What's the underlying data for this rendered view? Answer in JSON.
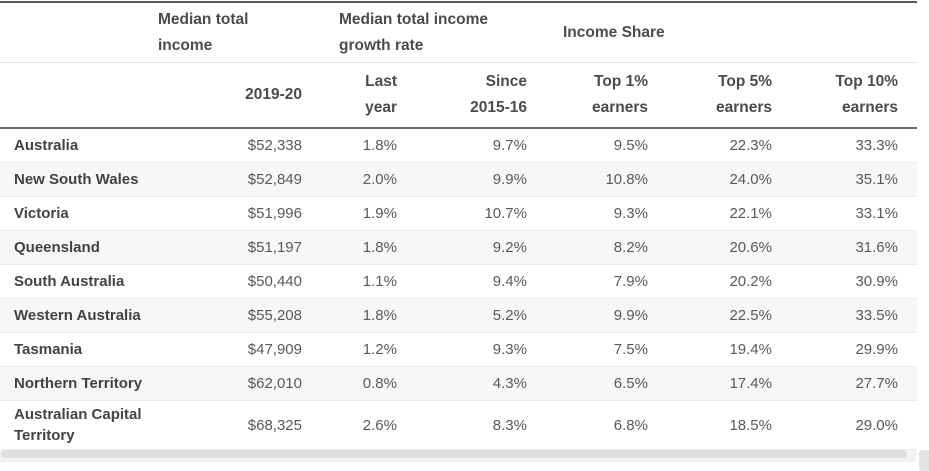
{
  "colors": {
    "header_border_dark": "#69696b",
    "row_separator": "#ebebeb",
    "row_stripe": "#f7f7f7",
    "text_header": "#4b4b4d",
    "text_value": "#58595b"
  },
  "chart_data": {
    "type": "table",
    "column_groups": [
      {
        "label": "Median total\nincome"
      },
      {
        "label": "Median total income\ngrowth rate"
      },
      {
        "label": "Income Share"
      }
    ],
    "columns": [
      "2019-20",
      "Last\nyear",
      "Since\n2015-16",
      "Top 1%\nearners",
      "Top 5%\nearners",
      "Top 10%\nearners"
    ],
    "rows": [
      {
        "region": "Australia",
        "values": [
          "$52,338",
          "1.8%",
          "9.7%",
          "9.5%",
          "22.3%",
          "33.3%"
        ]
      },
      {
        "region": "New South Wales",
        "values": [
          "$52,849",
          "2.0%",
          "9.9%",
          "10.8%",
          "24.0%",
          "35.1%"
        ]
      },
      {
        "region": "Victoria",
        "values": [
          "$51,996",
          "1.9%",
          "10.7%",
          "9.3%",
          "22.1%",
          "33.1%"
        ]
      },
      {
        "region": "Queensland",
        "values": [
          "$51,197",
          "1.8%",
          "9.2%",
          "8.2%",
          "20.6%",
          "31.6%"
        ]
      },
      {
        "region": "South Australia",
        "values": [
          "$50,440",
          "1.1%",
          "9.4%",
          "7.9%",
          "20.2%",
          "30.9%"
        ]
      },
      {
        "region": "Western Australia",
        "values": [
          "$55,208",
          "1.8%",
          "5.2%",
          "9.9%",
          "22.5%",
          "33.5%"
        ]
      },
      {
        "region": "Tasmania",
        "values": [
          "$47,909",
          "1.2%",
          "9.3%",
          "7.5%",
          "19.4%",
          "29.9%"
        ]
      },
      {
        "region": "Northern Territory",
        "values": [
          "$62,010",
          "0.8%",
          "4.3%",
          "6.5%",
          "17.4%",
          "27.7%"
        ]
      },
      {
        "region": "Australian Capital\nTerritory",
        "values": [
          "$68,325",
          "2.6%",
          "8.3%",
          "6.8%",
          "18.5%",
          "29.0%"
        ]
      }
    ]
  }
}
